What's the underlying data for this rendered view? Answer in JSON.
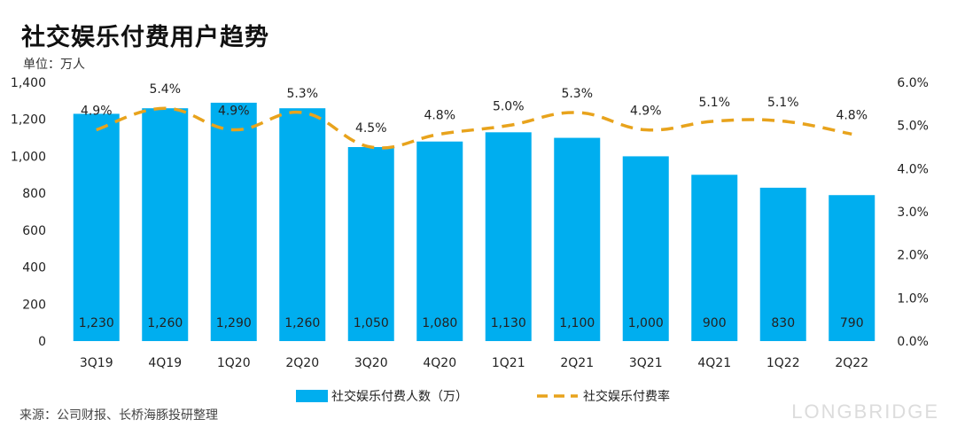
{
  "title": "社交娱乐付费用户趋势",
  "unit_label": "单位：万人",
  "source": "来源：公司财报、长桥海豚投研整理",
  "watermark": "LONGBRIDGE",
  "colors": {
    "bar": "#00AEEF",
    "line": "#E8A31C"
  },
  "chart_data": {
    "type": "bar+line",
    "categories": [
      "3Q19",
      "4Q19",
      "1Q20",
      "2Q20",
      "3Q20",
      "4Q20",
      "1Q21",
      "2Q21",
      "3Q21",
      "4Q21",
      "1Q22",
      "2Q22"
    ],
    "series": [
      {
        "name": "社交娱乐付费人数（万）",
        "type": "bar",
        "axis": "left",
        "values": [
          1230,
          1260,
          1290,
          1260,
          1050,
          1080,
          1130,
          1100,
          1000,
          900,
          830,
          790
        ],
        "value_labels": [
          "1,230",
          "1,260",
          "1,290",
          "1,260",
          "1,050",
          "1,080",
          "1,130",
          "1,100",
          "1,000",
          "900",
          "830",
          "790"
        ]
      },
      {
        "name": "社交娱乐付费率",
        "type": "line",
        "style": "dashed",
        "axis": "right",
        "values": [
          4.9,
          5.4,
          4.9,
          5.3,
          4.5,
          4.8,
          5.0,
          5.3,
          4.9,
          5.1,
          5.1,
          4.8
        ],
        "value_labels": [
          "4.9%",
          "5.4%",
          "4.9%",
          "5.3%",
          "4.5%",
          "4.8%",
          "5.0%",
          "5.3%",
          "4.9%",
          "5.1%",
          "5.1%",
          "4.8%"
        ]
      }
    ],
    "y_left": {
      "ylim": [
        0,
        1400
      ],
      "ticks": [
        0,
        200,
        400,
        600,
        800,
        1000,
        1200,
        1400
      ],
      "tick_labels": [
        "0",
        "200",
        "400",
        "600",
        "800",
        "1,000",
        "1,200",
        "1,400"
      ]
    },
    "y_right": {
      "ylim": [
        0,
        6
      ],
      "ticks": [
        0,
        1,
        2,
        3,
        4,
        5,
        6
      ],
      "tick_labels": [
        "0.0%",
        "1.0%",
        "2.0%",
        "3.0%",
        "4.0%",
        "5.0%",
        "6.0%"
      ]
    },
    "legend_position": "bottom-center",
    "grid": false
  }
}
